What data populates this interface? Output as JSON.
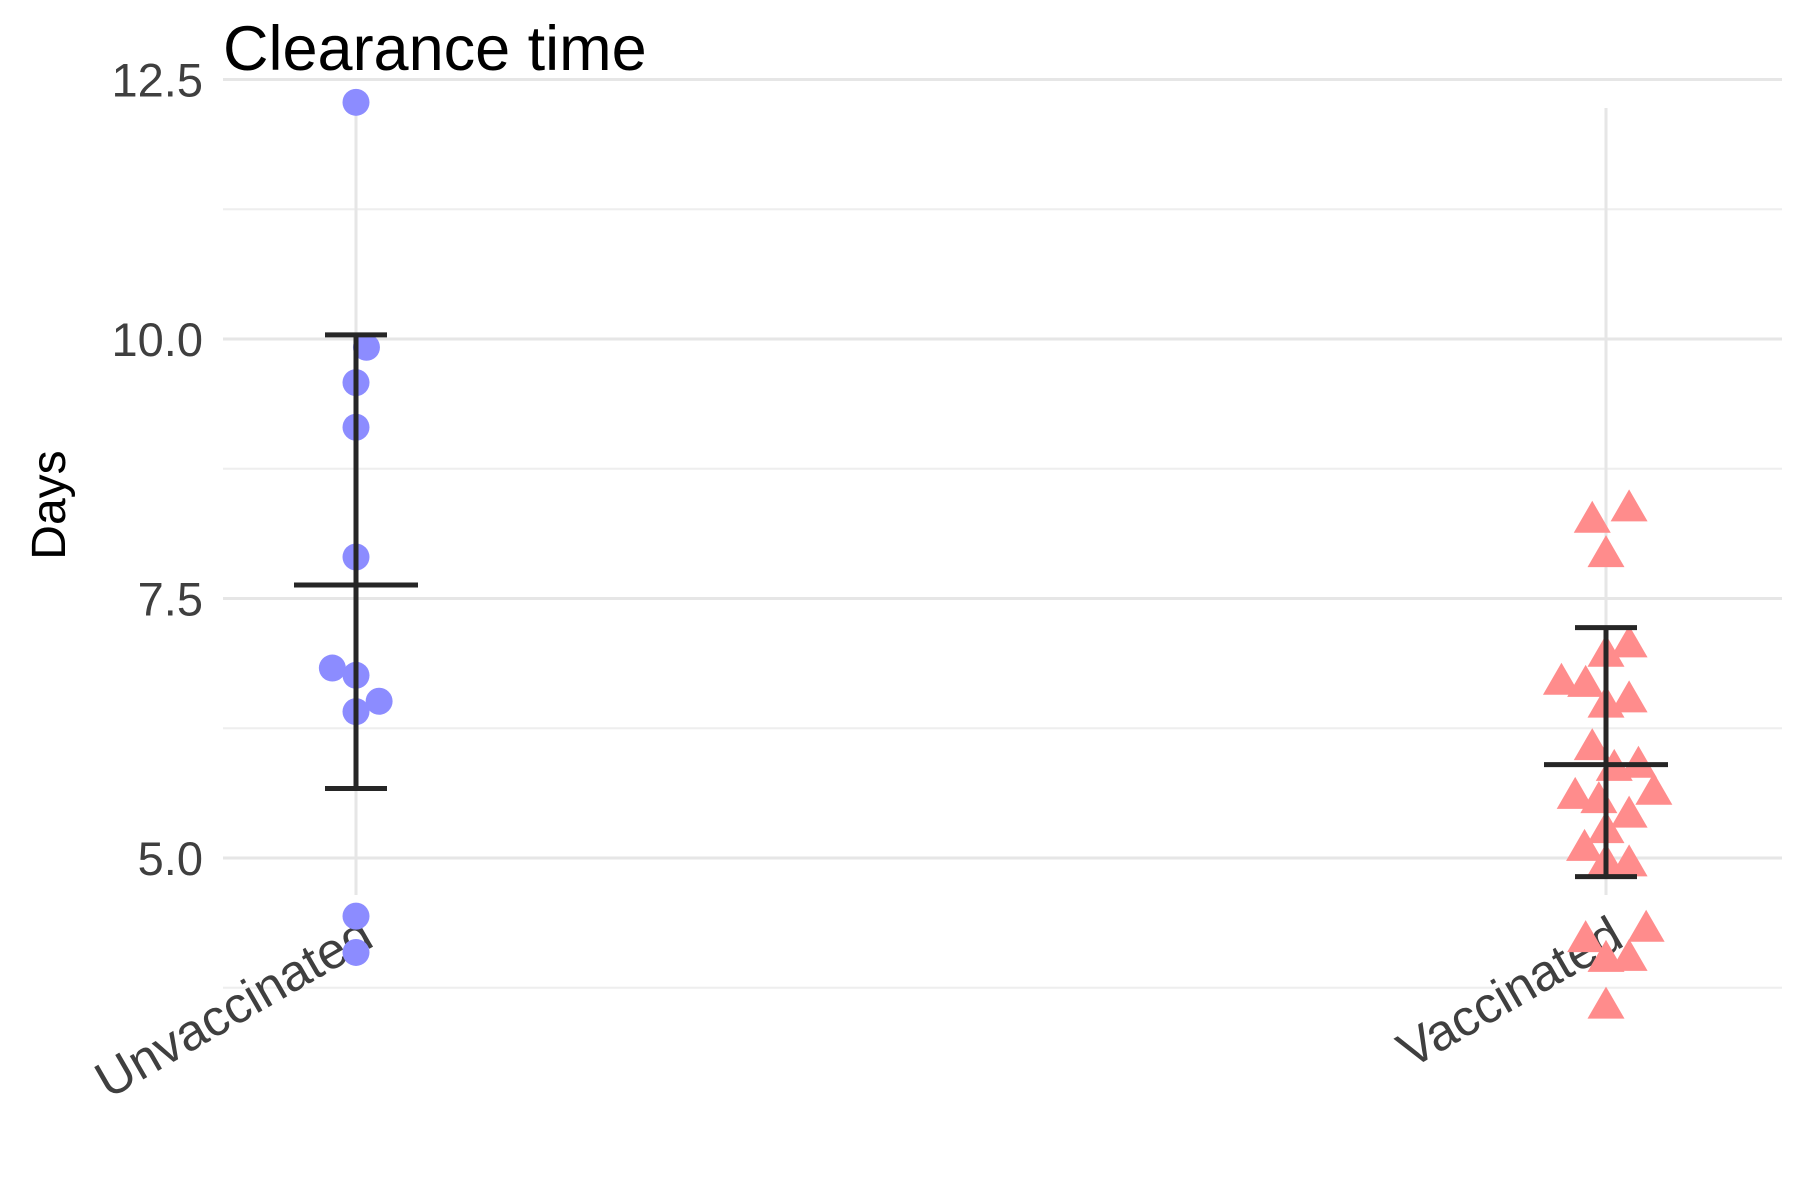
{
  "chart_data": {
    "type": "scatter",
    "title": "Clearance time",
    "ylabel": "Days",
    "xlabel": "",
    "ylim": [
      3.4,
      13.0
    ],
    "yticks": [
      5.0,
      7.5,
      10.0,
      12.5
    ],
    "ytick_labels": [
      "5.0",
      "7.5",
      "10.0",
      "12.5"
    ],
    "grid": true,
    "categories": [
      "Unvaccinated",
      "Vaccinated"
    ],
    "series": [
      {
        "category": "Unvaccinated",
        "marker": "circle",
        "color": "#8c8cff",
        "points": [
          {
            "jitter": 0.0,
            "y": 12.28
          },
          {
            "jitter": 0.19,
            "y": 9.92
          },
          {
            "jitter": 0.0,
            "y": 9.58
          },
          {
            "jitter": 0.0,
            "y": 9.15
          },
          {
            "jitter": 0.0,
            "y": 7.9
          },
          {
            "jitter": -0.43,
            "y": 6.83
          },
          {
            "jitter": 0.0,
            "y": 6.76
          },
          {
            "jitter": 0.42,
            "y": 6.51
          },
          {
            "jitter": 0.0,
            "y": 6.41
          },
          {
            "jitter": 0.0,
            "y": 4.44
          },
          {
            "jitter": 0.0,
            "y": 4.09
          }
        ],
        "summary": {
          "mean": 7.63,
          "lower": 5.67,
          "upper": 10.04
        }
      },
      {
        "category": "Vaccinated",
        "marker": "triangle",
        "color": "#ff8c8c",
        "points": [
          {
            "jitter": 0.42,
            "y": 8.36
          },
          {
            "jitter": -0.25,
            "y": 8.25
          },
          {
            "jitter": 0.0,
            "y": 7.92
          },
          {
            "jitter": 0.42,
            "y": 7.05
          },
          {
            "jitter": 0.0,
            "y": 6.96
          },
          {
            "jitter": -0.81,
            "y": 6.69
          },
          {
            "jitter": -0.37,
            "y": 6.67
          },
          {
            "jitter": 0.42,
            "y": 6.52
          },
          {
            "jitter": 0.0,
            "y": 6.47
          },
          {
            "jitter": -0.25,
            "y": 6.06
          },
          {
            "jitter": 0.59,
            "y": 5.89
          },
          {
            "jitter": 0.15,
            "y": 5.86
          },
          {
            "jitter": 0.87,
            "y": 5.63
          },
          {
            "jitter": -0.56,
            "y": 5.59
          },
          {
            "jitter": -0.13,
            "y": 5.55
          },
          {
            "jitter": 0.42,
            "y": 5.41
          },
          {
            "jitter": 0.0,
            "y": 5.26
          },
          {
            "jitter": -0.39,
            "y": 5.09
          },
          {
            "jitter": 0.42,
            "y": 4.94
          },
          {
            "jitter": 0.0,
            "y": 4.95
          },
          {
            "jitter": 0.73,
            "y": 4.31
          },
          {
            "jitter": -0.37,
            "y": 4.21
          },
          {
            "jitter": 0.0,
            "y": 4.02
          },
          {
            "jitter": 0.42,
            "y": 4.03
          },
          {
            "jitter": 0.0,
            "y": 3.57
          }
        ],
        "summary": {
          "mean": 5.9,
          "lower": 4.82,
          "upper": 7.22
        }
      }
    ]
  }
}
